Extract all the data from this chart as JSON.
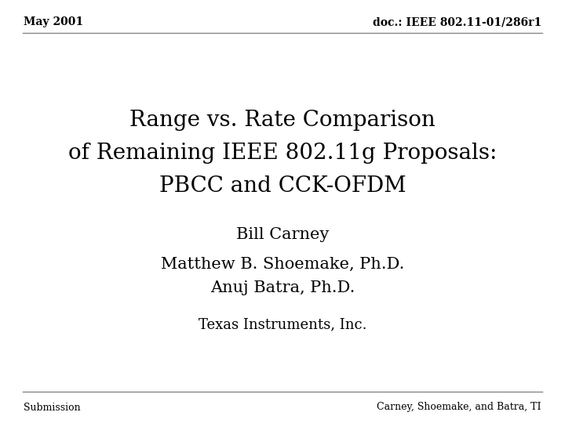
{
  "header_left": "May 2001",
  "header_right": "doc.: IEEE 802.11-01/286r1",
  "footer_left": "Submission",
  "footer_right": "Carney, Shoemake, and Batra, TI",
  "title_line1": "Range vs. Rate Comparison",
  "title_line2": "of Remaining IEEE 802.11g Proposals:",
  "title_line3": "PBCC and CCK-OFDM",
  "author1": "Bill Carney",
  "author2": "Matthew B. Shoemake, Ph.D.",
  "author3": "Anuj Batra, Ph.D.",
  "org": "Texas Instruments, Inc.",
  "bg_color": "#ffffff",
  "text_color": "#000000",
  "header_fontsize": 10,
  "title_fontsize": 20,
  "author_fontsize": 15,
  "org_fontsize": 13,
  "footer_fontsize": 9,
  "line_color": "#888888",
  "line_width": 1.0
}
